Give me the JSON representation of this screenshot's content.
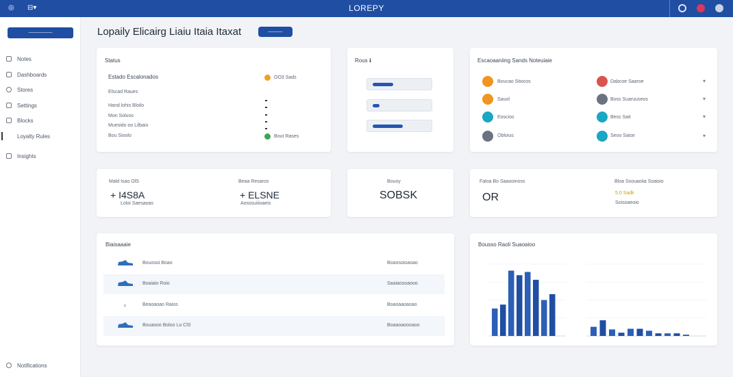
{
  "topbar": {
    "brand": "LOREPY",
    "left_items": [
      "◎",
      "⊟▾"
    ],
    "icons": [
      "gear-icon",
      "notification-icon",
      "avatar"
    ]
  },
  "sidebar": {
    "button_label": "—————",
    "items": [
      {
        "label": "Notes",
        "icon": "home-icon"
      },
      {
        "label": "Dashboards",
        "icon": "dashboard-icon"
      },
      {
        "label": "Stores",
        "icon": "store-icon"
      },
      {
        "label": "Settings",
        "icon": "settings-icon"
      },
      {
        "label": "Blocks",
        "icon": "blocks-icon"
      },
      {
        "label": "Loyalty Rules",
        "icon": "rules-icon",
        "active": true
      },
      {
        "label": "Insights",
        "icon": "insights-icon"
      }
    ],
    "footer": "Notifications"
  },
  "page": {
    "title": "Lopaily Elicairg Liaiu Itaia Itaxat",
    "badge": "———"
  },
  "card_status": {
    "title": "Status",
    "heading": "Estado Escalonados",
    "items": [
      "Elscad Raues",
      "Hand lohis Bloilo",
      "Mon Soluos",
      "Muesido oo Lilbaio",
      "Bou Sioolo"
    ],
    "right_top": "OO3 Sads",
    "right_bottom": "Bout Rases",
    "colors": {
      "top": "#f0a020",
      "bottom": "#3aa655"
    }
  },
  "card_filter": {
    "title": "Rous ℹ",
    "bars": [
      0.3,
      0.1,
      0.45
    ]
  },
  "card_categories": {
    "title": "Escaoaaniing Sands Noteuiaie",
    "left": [
      {
        "label": "Boucao Stiocos",
        "color": "#f0951e"
      },
      {
        "label": "Sauol",
        "color": "#f0951e"
      },
      {
        "label": "Eoscios",
        "color": "#1aa6c4"
      },
      {
        "label": "Obloius",
        "color": "#6b7380"
      }
    ],
    "right": [
      {
        "label": "Dabcoe Saaroe",
        "color": "#d9534f"
      },
      {
        "label": "Boss Suaruuseos",
        "color": "#6b7380"
      },
      {
        "label": "Bess Sait",
        "color": "#1aa6c4"
      },
      {
        "label": "Seoo Saise",
        "color": "#1aa6c4"
      }
    ]
  },
  "kpi_left": [
    {
      "label": "Mald Isao OlS",
      "value": "+ I4S8A",
      "sub": "Loloi Saesaoas"
    },
    {
      "label": "Beaa Resaros",
      "value": "+ ELSNE",
      "sub": "Aosssuiiioaeis"
    }
  ],
  "kpi_mid": {
    "label": "Bouoy",
    "value": "SOBSK"
  },
  "kpi_right": [
    {
      "label": "Faloa Bo Saaooinoss",
      "value": "OR"
    },
    {
      "label": "Bloa Ssouaoiia Soaisio",
      "value": "5.0 Sadk",
      "sub": "Soisoaeoio"
    }
  ],
  "card_list": {
    "title": "Biaisaaaie",
    "rows": [
      {
        "name": "Bouosoi Boao",
        "value": "Boaosoioaoao"
      },
      {
        "name": "Boaiaio Roio",
        "value": "Saaiaosoaooo"
      },
      {
        "name": "Beaoaoao Raios",
        "value": "Boaoaaoaoao"
      },
      {
        "name": "Bouasoo Boloo Lo ClS",
        "value": "Boaaoaoooaoo"
      }
    ]
  },
  "card_chart": {
    "title": "Bousso Raoli Suaoaioo"
  },
  "chart_data": [
    {
      "type": "bar",
      "title": "",
      "categories": [
        "",
        "",
        "",
        "",
        "",
        "",
        "",
        ""
      ],
      "values": [
        42,
        48,
        100,
        93,
        98,
        86,
        55,
        64
      ],
      "ylim": [
        0,
        110
      ],
      "color": "#1f4ea3"
    },
    {
      "type": "bar",
      "title": "",
      "categories": [
        "",
        "",
        "",
        "",
        "",
        "",
        "",
        "",
        "",
        "",
        ""
      ],
      "values": [
        14,
        24,
        10,
        5,
        11,
        11,
        8,
        4,
        4,
        4,
        2
      ],
      "ylim": [
        0,
        110
      ],
      "color": "#1f4ea3"
    }
  ]
}
